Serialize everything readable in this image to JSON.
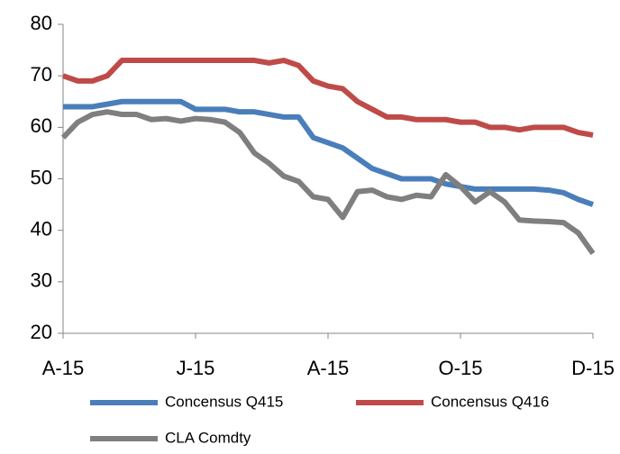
{
  "chart_data": {
    "type": "line",
    "categories": [
      "A-15",
      null,
      null,
      null,
      null,
      null,
      null,
      null,
      null,
      "J-15",
      null,
      null,
      null,
      null,
      null,
      null,
      null,
      null,
      "A-15",
      null,
      null,
      null,
      null,
      null,
      null,
      null,
      null,
      "O-15",
      null,
      null,
      null,
      null,
      null,
      null,
      null,
      null,
      "D-15"
    ],
    "series": [
      {
        "name": "Concensus Q415",
        "color": "#4a7ebb",
        "values": [
          64,
          64,
          64,
          64.5,
          65,
          65,
          65,
          65,
          65,
          63.5,
          63.5,
          63.5,
          63,
          63,
          62.5,
          62,
          62,
          58,
          57,
          56,
          54,
          52,
          51,
          50,
          50,
          50,
          49,
          48.5,
          48,
          48,
          48,
          48,
          48,
          47.8,
          47.3,
          46,
          45
        ]
      },
      {
        "name": "Concensus Q416",
        "color": "#be4b48",
        "values": [
          70,
          69,
          69,
          70,
          73,
          73,
          73,
          73,
          73,
          73,
          73,
          73,
          73,
          73,
          72.5,
          73,
          72,
          69,
          68,
          67.5,
          65,
          63.5,
          62,
          62,
          61.5,
          61.5,
          61.5,
          61,
          61,
          60,
          60,
          59.5,
          60,
          60,
          60,
          59,
          58.5
        ]
      },
      {
        "name": "CLA Comdty",
        "color": "#7f7f7f",
        "values": [
          58,
          61,
          62.5,
          63,
          62.5,
          62.5,
          61.5,
          61.7,
          61.2,
          61.7,
          61.5,
          61,
          59,
          55,
          53,
          50.5,
          49.5,
          46.5,
          46,
          42.5,
          47.5,
          47.8,
          46.5,
          46,
          46.8,
          46.5,
          50.8,
          48.5,
          45.5,
          47.5,
          45.5,
          42,
          41.8,
          41.7,
          41.5,
          39.5,
          35.5
        ]
      }
    ],
    "ylim": [
      20,
      80
    ],
    "yticks": [
      20,
      30,
      40,
      50,
      60,
      70,
      80
    ],
    "grid": false
  }
}
